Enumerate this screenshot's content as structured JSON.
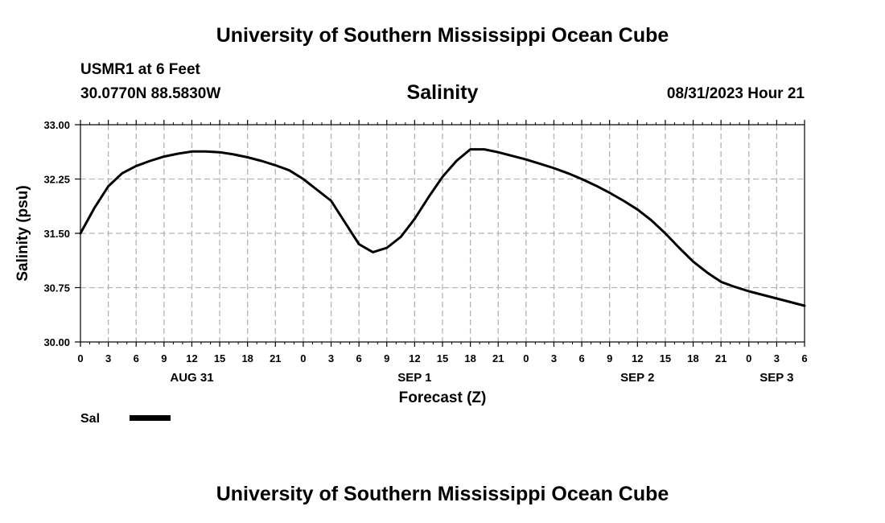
{
  "header": {
    "title": "University of Southern Mississippi Ocean Cube",
    "station": "USMR1 at 6 Feet",
    "location": "30.0770N  88.5830W",
    "datetime": "08/31/2023 Hour 21"
  },
  "footer": {
    "title": "University of Southern Mississippi Ocean Cube"
  },
  "chart_data": {
    "type": "line",
    "title": "Salinity",
    "xlabel": "Forecast (Z)",
    "ylabel": "Salinity (psu)",
    "ylim": [
      30.0,
      33.0
    ],
    "xlim": [
      0,
      78
    ],
    "grid": true,
    "yticks": [
      "30.00",
      "30.75",
      "31.50",
      "32.25",
      "33.00"
    ],
    "ytick_values": [
      30.0,
      30.75,
      31.5,
      32.25,
      33.0
    ],
    "xtick_labels": [
      "0",
      "3",
      "6",
      "9",
      "12",
      "15",
      "18",
      "21",
      "0",
      "3",
      "6",
      "9",
      "12",
      "15",
      "18",
      "21",
      "0",
      "3",
      "6",
      "9",
      "12",
      "15",
      "18",
      "21",
      "0",
      "3",
      "6"
    ],
    "date_labels": [
      {
        "label": "AUG 31",
        "hour": 12
      },
      {
        "label": "SEP 1",
        "hour": 36
      },
      {
        "label": "SEP 2",
        "hour": 60
      },
      {
        "label": "SEP 3",
        "hour": 75
      }
    ],
    "series": [
      {
        "name": "Sal",
        "color": "#000000",
        "x": [
          0,
          1.5,
          3,
          4.5,
          6,
          7.5,
          9,
          10.5,
          12,
          13.5,
          15,
          16.5,
          18,
          19.5,
          21,
          22.5,
          24,
          25.5,
          27,
          28.5,
          30,
          31.5,
          33,
          34.5,
          36,
          37.5,
          39,
          40.5,
          42,
          43.5,
          45,
          46.5,
          48,
          49.5,
          51,
          52.5,
          54,
          55.5,
          57,
          58.5,
          60,
          61.5,
          63,
          64.5,
          66,
          67.5,
          69,
          70.5,
          72,
          73.5,
          75,
          76.5,
          78
        ],
        "y": [
          31.5,
          31.85,
          32.15,
          32.33,
          32.43,
          32.5,
          32.56,
          32.6,
          32.63,
          32.63,
          32.62,
          32.59,
          32.55,
          32.5,
          32.44,
          32.37,
          32.25,
          32.1,
          31.95,
          31.65,
          31.35,
          31.24,
          31.3,
          31.45,
          31.7,
          32.0,
          32.28,
          32.5,
          32.66,
          32.66,
          32.62,
          32.57,
          32.52,
          32.46,
          32.4,
          32.33,
          32.25,
          32.16,
          32.06,
          31.95,
          31.83,
          31.68,
          31.5,
          31.3,
          31.11,
          30.96,
          30.83,
          30.76,
          30.7,
          30.65,
          30.6,
          30.55,
          30.5
        ]
      }
    ]
  }
}
